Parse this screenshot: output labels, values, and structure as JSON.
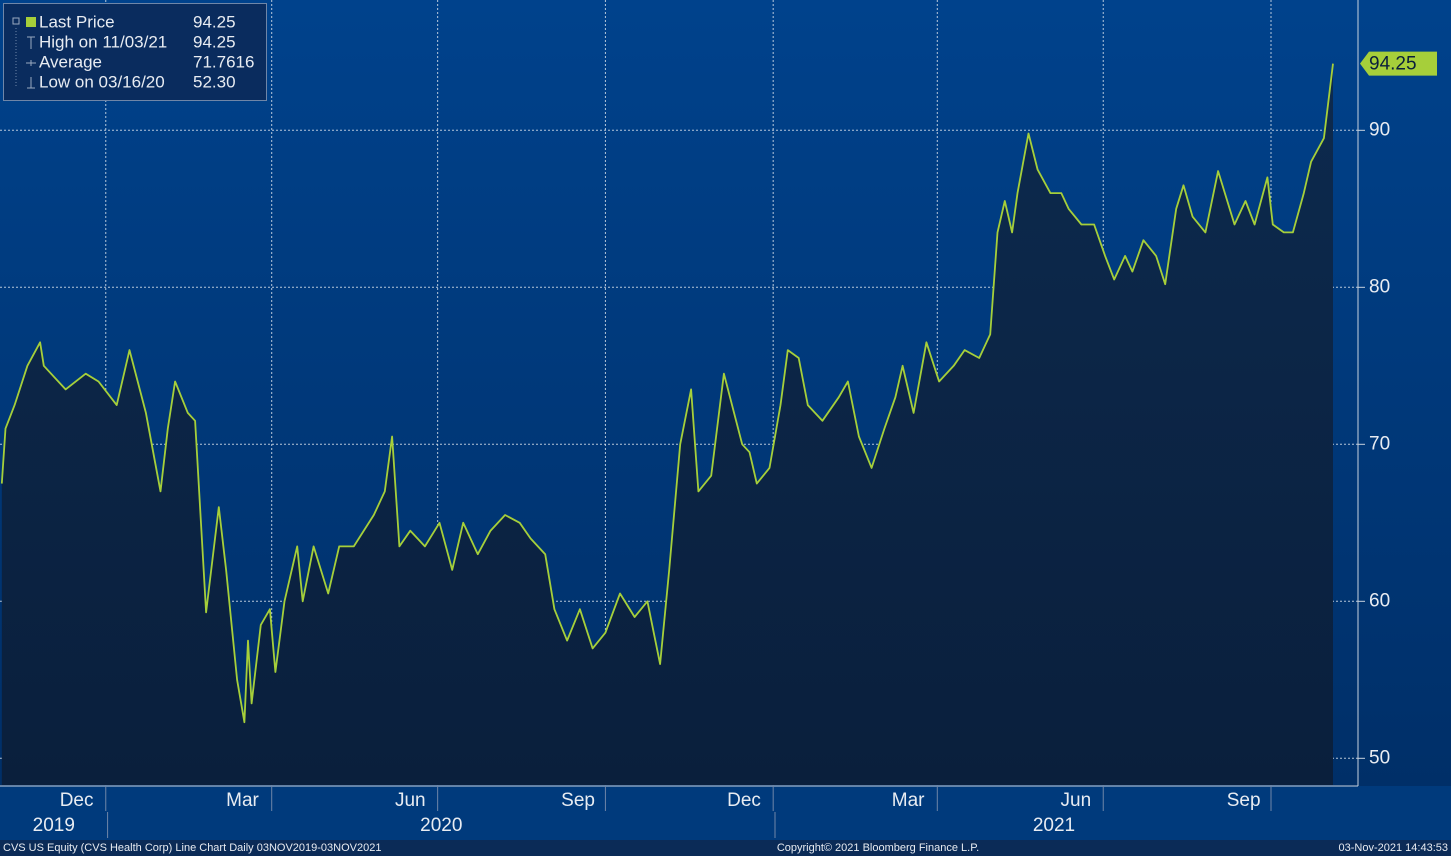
{
  "chart_data": {
    "type": "line",
    "series": [
      {
        "name": "Last Price",
        "color": "#a6cf3a",
        "values": [
          67.5,
          71,
          72.5,
          75,
          76.5,
          75,
          73.5,
          74.5,
          74,
          72.5,
          76,
          72,
          67,
          71,
          74,
          72,
          71.5,
          59.3,
          66,
          62,
          55,
          52.3,
          57.5,
          53.5,
          58.5,
          59.5,
          55.5,
          60,
          63.5,
          60,
          63.5,
          60.5,
          63.5,
          63.5,
          65.5,
          67,
          70.5,
          63.5,
          64.5,
          63.5,
          65,
          62,
          65,
          63,
          64.5,
          65.5,
          65,
          64,
          63,
          59.5,
          57.5,
          59.5,
          57,
          58,
          60.5,
          59,
          60,
          56,
          62,
          70,
          73.5,
          67,
          68,
          74.5,
          70,
          69.5,
          67.5,
          68.5,
          72.5,
          76,
          75.5,
          72.5,
          71.5,
          73,
          74,
          70.5,
          68.5,
          71,
          73,
          75,
          72,
          76.5,
          74,
          75,
          76,
          75.5,
          77,
          83.5,
          85.5,
          83.5,
          86,
          89.8,
          87.5,
          86,
          86,
          85,
          84,
          84,
          82,
          80.5,
          82,
          81,
          83,
          82,
          80.2,
          85,
          86.5,
          84.5,
          83.5,
          87.4,
          84,
          85.5,
          84,
          87,
          84,
          83.5,
          83.5,
          86,
          88,
          89.5,
          94.25
        ]
      }
    ],
    "x": [
      "11/04/19",
      "11/06/19",
      "11/11/19",
      "11/18/19",
      "11/25/19",
      "11/27/19",
      "12/09/19",
      "12/20/19",
      "12/27/19",
      "01/06/20",
      "01/13/20",
      "01/22/20",
      "01/30/20",
      "02/03/20",
      "02/07/20",
      "02/14/20",
      "02/18/20",
      "02/24/20",
      "03/02/20",
      "03/06/20",
      "03/12/20",
      "03/16/20",
      "03/18/20",
      "03/20/20",
      "03/25/20",
      "03/30/20",
      "04/02/20",
      "04/07/20",
      "04/14/20",
      "04/17/20",
      "04/23/20",
      "05/01/20",
      "05/07/20",
      "05/15/20",
      "05/26/20",
      "06/01/20",
      "06/05/20",
      "06/09/20",
      "06/15/20",
      "06/23/20",
      "07/01/20",
      "07/08/20",
      "07/14/20",
      "07/22/20",
      "07/29/20",
      "08/06/20",
      "08/14/20",
      "08/20/20",
      "08/28/20",
      "09/02/20",
      "09/09/20",
      "09/16/20",
      "09/23/20",
      "09/30/20",
      "10/08/20",
      "10/16/20",
      "10/23/20",
      "10/30/20",
      "11/04/20",
      "11/10/20",
      "11/16/20",
      "11/20/20",
      "11/27/20",
      "12/04/20",
      "12/14/20",
      "12/18/20",
      "12/22/20",
      "12/29/20",
      "01/04/21",
      "01/08/21",
      "01/14/21",
      "01/19/21",
      "01/27/21",
      "02/05/21",
      "02/10/21",
      "02/16/21",
      "02/23/21",
      "03/02/21",
      "03/08/21",
      "03/12/21",
      "03/18/21",
      "03/25/21",
      "04/01/21",
      "04/09/21",
      "04/15/21",
      "04/23/21",
      "04/29/21",
      "05/03/21",
      "05/07/21",
      "05/11/21",
      "05/14/21",
      "05/20/21",
      "05/25/21",
      "06/01/21",
      "06/07/21",
      "06/11/21",
      "06/18/21",
      "06/25/21",
      "07/01/21",
      "07/06/21",
      "07/12/21",
      "07/16/21",
      "07/22/21",
      "07/29/21",
      "08/03/21",
      "08/09/21",
      "08/13/21",
      "08/18/21",
      "08/25/21",
      "09/01/21",
      "09/10/21",
      "09/16/21",
      "09/21/21",
      "09/28/21",
      "10/01/21",
      "10/07/21",
      "10/12/21",
      "10/18/21",
      "10/22/21",
      "10/29/21",
      "11/03/21"
    ],
    "xlim": [
      "11/03/19",
      "11/03/21"
    ],
    "xticks": [
      {
        "value": "12/15/19",
        "label": "Dec"
      },
      {
        "value": "03/15/20",
        "label": "Mar"
      },
      {
        "value": "06/15/20",
        "label": "Jun"
      },
      {
        "value": "09/15/20",
        "label": "Sep"
      },
      {
        "value": "12/15/20",
        "label": "Dec"
      },
      {
        "value": "03/15/21",
        "label": "Mar"
      },
      {
        "value": "06/15/21",
        "label": "Jun"
      },
      {
        "value": "09/15/21",
        "label": "Sep"
      }
    ],
    "xgrid": [
      "12/31/19",
      "03/31/20",
      "06/30/20",
      "09/30/20",
      "12/31/20",
      "03/31/21",
      "06/30/21",
      "09/30/21"
    ],
    "years": [
      "2019",
      "2020",
      "2021"
    ],
    "ylim": [
      48.3,
      98.3
    ],
    "yticks": [
      50,
      60,
      70,
      80,
      90
    ],
    "grid": true,
    "legend_stats": [
      {
        "label": "High on 11/03/21",
        "value": 94.25
      },
      {
        "label": "Average",
        "value": 71.7616
      },
      {
        "label": "Low on 03/16/20",
        "value": 52.3,
        "value_label": "52.30"
      }
    ]
  },
  "footer": {
    "left": "CVS US Equity (CVS Health Corp) Line Chart  Daily 03NOV2019-03NOV2021",
    "center": "Copyright© 2021 Bloomberg Finance L.P.",
    "right": "03-Nov-2021 14:43:53"
  }
}
